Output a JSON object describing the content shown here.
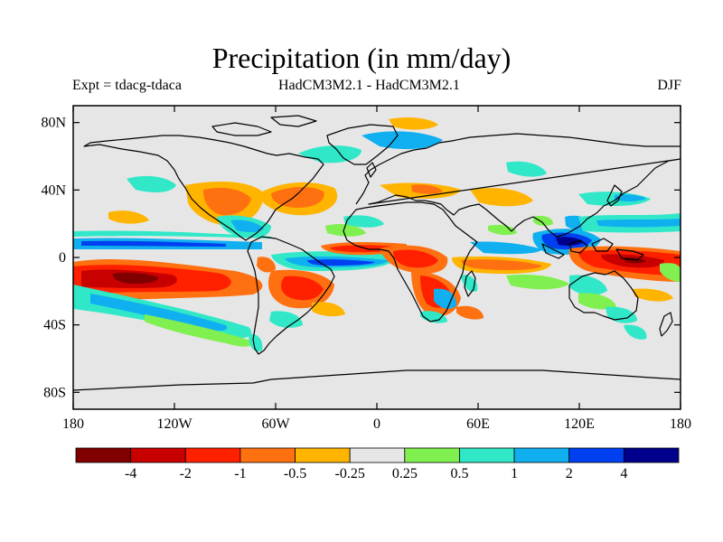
{
  "title": "Precipitation (in mm/day)",
  "subtitle_left": "Expt = tdacg-tdaca",
  "subtitle_center": "HadCM3M2.1 - HadCM3M2.1",
  "subtitle_right": "DJF",
  "lat_ticks": [
    "80N",
    "40N",
    "0",
    "40S",
    "80S"
  ],
  "lon_ticks": [
    "180",
    "120W",
    "60W",
    "0",
    "60E",
    "120E",
    "180"
  ],
  "lat_values": [
    80,
    40,
    0,
    -40,
    -80
  ],
  "lon_values": [
    -180,
    -120,
    -60,
    0,
    60,
    120,
    180
  ],
  "colorbar": {
    "colors": [
      "#800000",
      "#c80000",
      "#ff2000",
      "#ff7010",
      "#ffb400",
      "#e6e6e6",
      "#80f050",
      "#30e8c8",
      "#10b0f0",
      "#0040f0",
      "#00008c"
    ],
    "labels": [
      "-4",
      "-2",
      "-1",
      "-0.5",
      "-0.25",
      "0.25",
      "0.5",
      "1",
      "2",
      "4"
    ]
  },
  "background_color": "#e6e6e6"
}
